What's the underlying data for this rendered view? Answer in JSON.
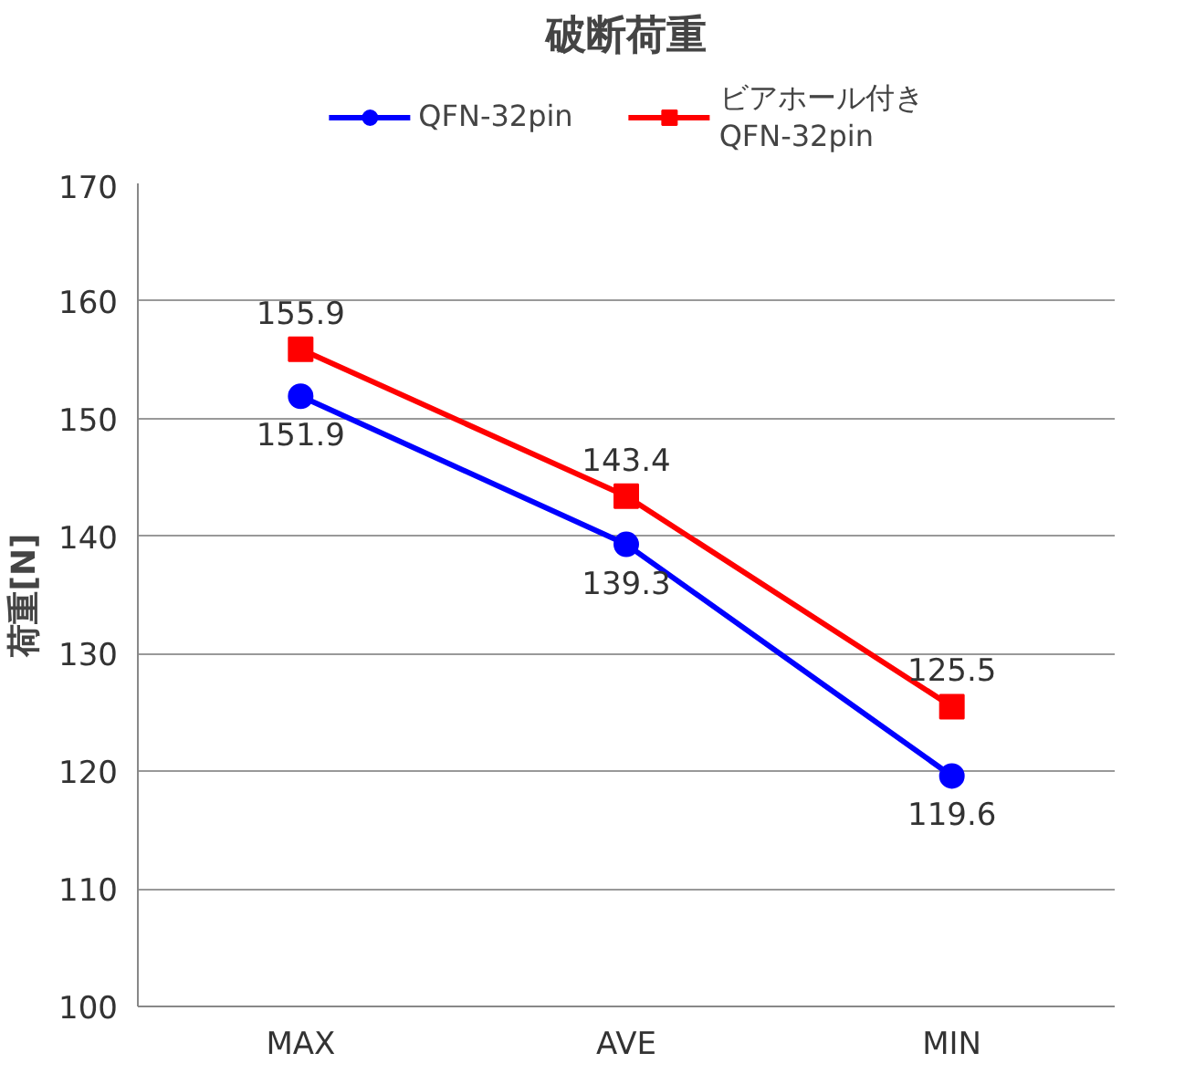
{
  "chart_data": {
    "type": "line",
    "title": "破断荷重",
    "ylabel": "荷重[N]",
    "categories": [
      "MAX",
      "AVE",
      "MIN"
    ],
    "series": [
      {
        "name": "QFN-32pin",
        "color": "#0000ff",
        "marker": "circle",
        "values": [
          151.9,
          139.3,
          119.6
        ]
      },
      {
        "name": "ビアホール付き\nQFN-32pin",
        "color": "#ff0000",
        "marker": "square",
        "values": [
          155.9,
          143.4,
          125.5
        ]
      }
    ],
    "ylim": [
      100,
      170
    ],
    "yticks": [
      100,
      110,
      120,
      130,
      140,
      150,
      160,
      170
    ],
    "grid": "y",
    "legend": "top",
    "data_labels": true,
    "line_style": "solid"
  }
}
